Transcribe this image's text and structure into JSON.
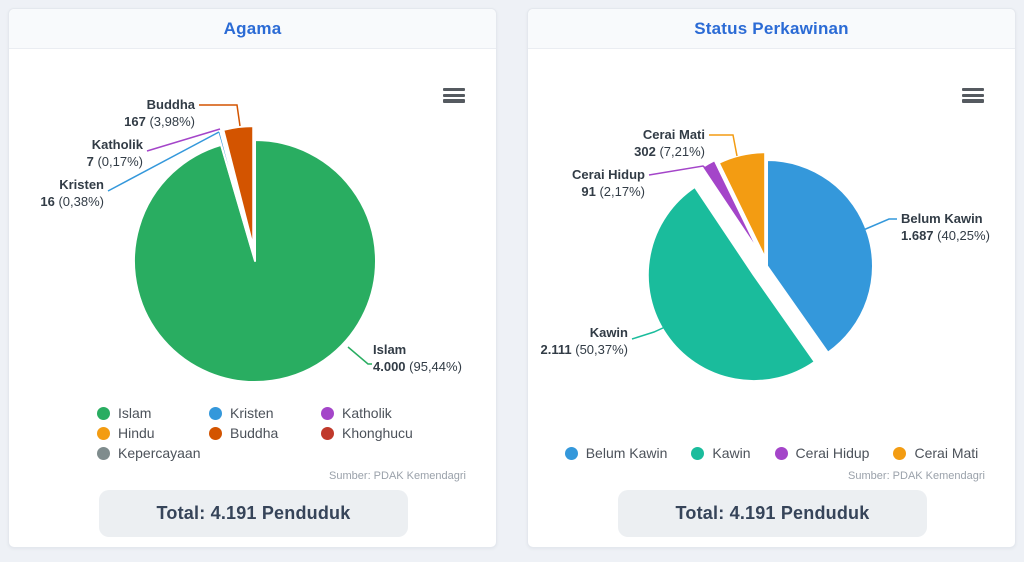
{
  "title_color": "#2b6bd5",
  "chart_data": [
    {
      "type": "pie",
      "title": "Agama",
      "total_label": "Total: 4.191 Penduduk",
      "total_value": 4191,
      "source": "Sumber: PDAK Kemendagri",
      "menu_icon": "hamburger-menu-icon",
      "legend_position": "bottom",
      "series": [
        {
          "name": "Islam",
          "value": 4000,
          "value_label": "4.000",
          "pct": 95.44,
          "pct_label": "95,44%",
          "color": "#29ad61",
          "sliced": false
        },
        {
          "name": "Kristen",
          "value": 16,
          "value_label": "16",
          "pct": 0.38,
          "pct_label": "0,38%",
          "color": "#3498db",
          "sliced": true
        },
        {
          "name": "Katholik",
          "value": 7,
          "value_label": "7",
          "pct": 0.17,
          "pct_label": "0,17%",
          "color": "#a445c9",
          "sliced": true
        },
        {
          "name": "Hindu",
          "value": null,
          "value_label": null,
          "pct": null,
          "pct_label": null,
          "color": "#f39c12",
          "sliced": false
        },
        {
          "name": "Buddha",
          "value": 167,
          "value_label": "167",
          "pct": 3.98,
          "pct_label": "3,98%",
          "color": "#d35400",
          "sliced": true
        },
        {
          "name": "Khonghucu",
          "value": null,
          "value_label": null,
          "pct": null,
          "pct_label": null,
          "color": "#c0392b",
          "sliced": false
        },
        {
          "name": "Kepercayaan",
          "value": null,
          "value_label": null,
          "pct": null,
          "pct_label": null,
          "color": "#7f8c8d",
          "sliced": false
        }
      ],
      "legend": [
        "Islam",
        "Kristen",
        "Katholik",
        "Hindu",
        "Buddha",
        "Khonghucu",
        "Kepercayaan"
      ]
    },
    {
      "type": "pie",
      "title": "Status Perkawinan",
      "total_label": "Total: 4.191 Penduduk",
      "total_value": 4191,
      "source": "Sumber: PDAK Kemendagri",
      "menu_icon": "hamburger-menu-icon",
      "legend_position": "bottom",
      "series": [
        {
          "name": "Belum Kawin",
          "value": 1687,
          "value_label": "1.687",
          "pct": 40.25,
          "pct_label": "40,25%",
          "color": "#3498db",
          "sliced": false
        },
        {
          "name": "Kawin",
          "value": 2111,
          "value_label": "2.111",
          "pct": 50.37,
          "pct_label": "50,37%",
          "color": "#1abc9c",
          "sliced": true
        },
        {
          "name": "Cerai Hidup",
          "value": 91,
          "value_label": "91",
          "pct": 2.17,
          "pct_label": "2,17%",
          "color": "#a445c9",
          "sliced": true
        },
        {
          "name": "Cerai Mati",
          "value": 302,
          "value_label": "302",
          "pct": 7.21,
          "pct_label": "7,21%",
          "color": "#f39c12",
          "sliced": true
        }
      ],
      "legend": [
        "Belum Kawin",
        "Kawin",
        "Cerai Hidup",
        "Cerai Mati"
      ]
    }
  ]
}
